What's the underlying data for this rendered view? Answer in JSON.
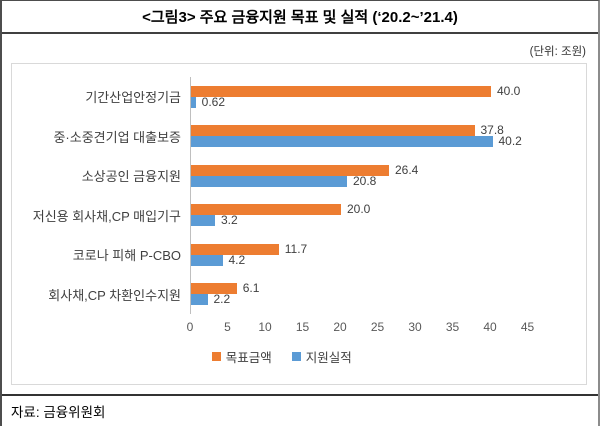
{
  "title": "<그림3> 주요 금융지원 목표 및 실적 (‘20.2~’21.4)",
  "unit_label": "(단위: 조원)",
  "source": "자료: 금융위원회",
  "chart_data": {
    "type": "bar",
    "orientation": "horizontal",
    "title": "<그림3> 주요 금융지원 목표 및 실적 (‘20.2~’21.4)",
    "unit": "조원",
    "categories": [
      "기간산업안정기금",
      "중·소중견기업 대출보증",
      "소상공인 금융지원",
      "저신용 회사채,CP 매입기구",
      "코로나 피해 P-CBO",
      "회사채,CP 차환인수지원"
    ],
    "series": [
      {
        "name": "목표금액",
        "color": "#ED7D31",
        "values": [
          40.0,
          37.8,
          26.4,
          20.0,
          11.7,
          6.1
        ],
        "labels": [
          "40.0",
          "37.8",
          "26.4",
          "20.0",
          "11.7",
          "6.1"
        ]
      },
      {
        "name": "지원실적",
        "color": "#5B9BD5",
        "values": [
          0.62,
          40.2,
          20.8,
          3.2,
          4.2,
          2.2
        ],
        "labels": [
          "0.62",
          "40.2",
          "20.8",
          "3.2",
          "4.2",
          "2.2"
        ]
      }
    ],
    "x_axis": {
      "min": 0,
      "max": 45,
      "step": 5,
      "ticks": [
        0,
        5,
        10,
        15,
        20,
        25,
        30,
        35,
        40,
        45
      ]
    },
    "legend_position": "bottom",
    "grid": false,
    "value_labels": true
  }
}
